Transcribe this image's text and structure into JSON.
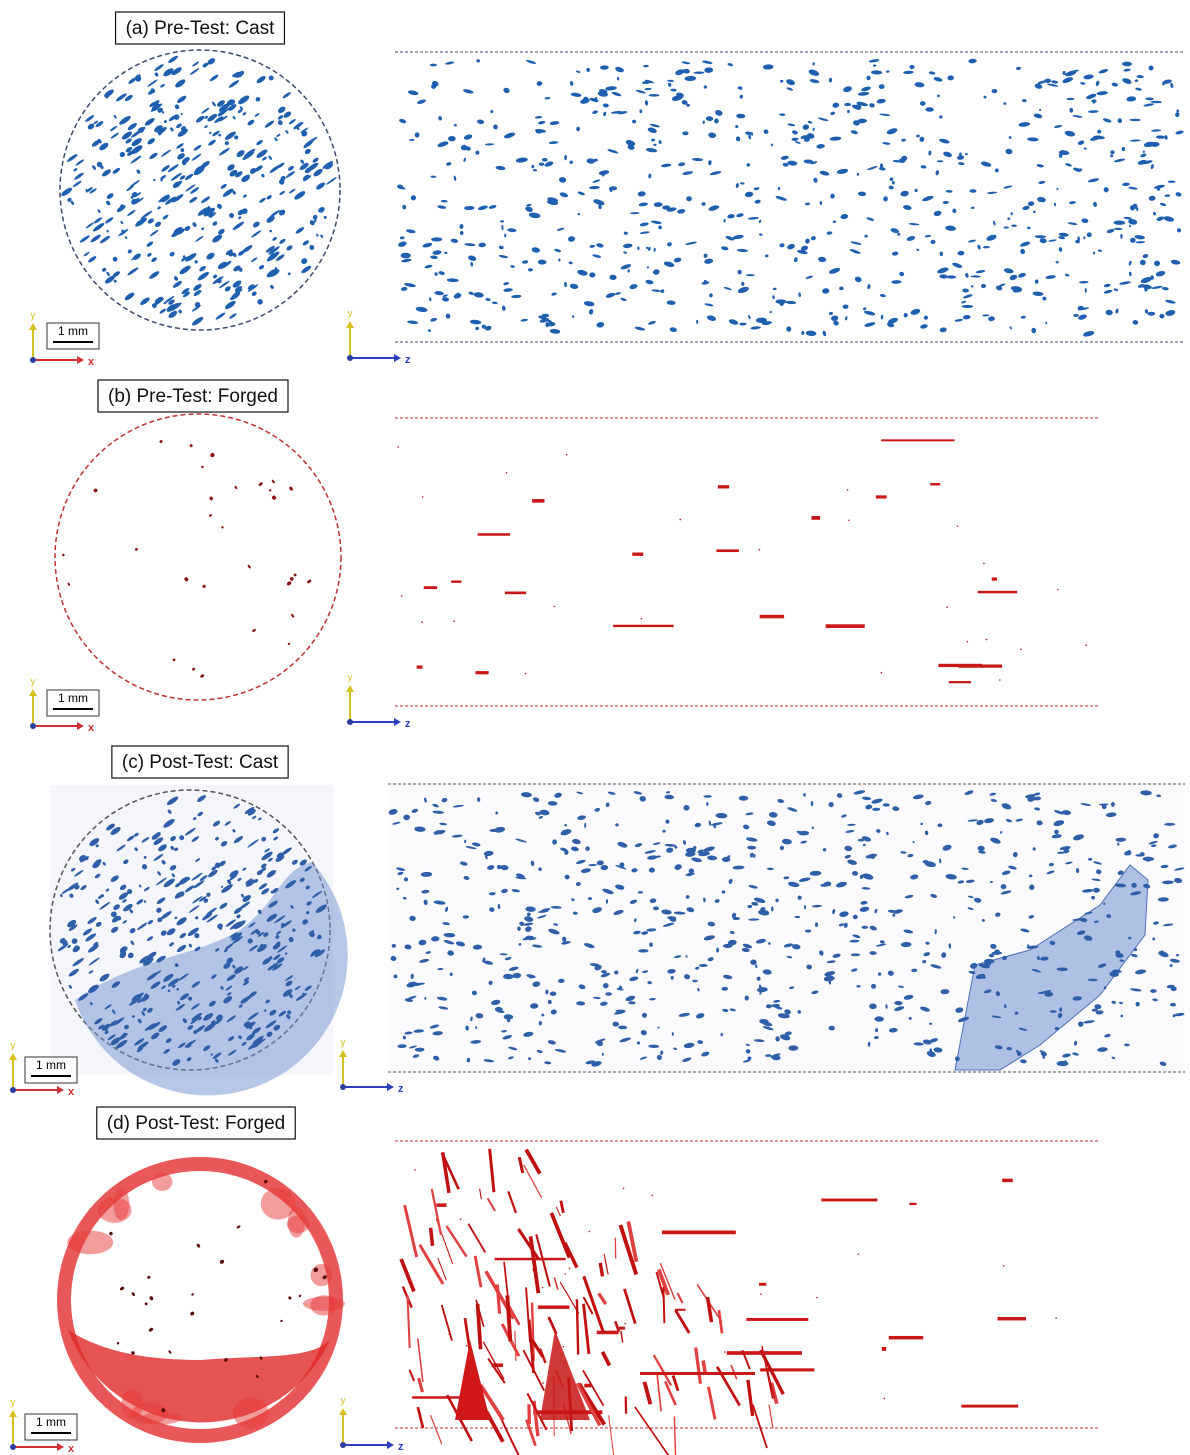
{
  "panels": [
    {
      "title": "(a) Pre-Test: Cast",
      "scale_bar": "1 mm",
      "cross_section_axes": [
        "y",
        "x"
      ],
      "side_axes": [
        "y",
        "z"
      ]
    },
    {
      "title": "(b) Pre-Test: Forged",
      "scale_bar": "1 mm",
      "cross_section_axes": [
        "y",
        "x"
      ],
      "side_axes": [
        "y",
        "z"
      ]
    },
    {
      "title": "(c) Post-Test: Cast",
      "scale_bar": "1 mm",
      "cross_section_axes": [
        "y",
        "x"
      ],
      "side_axes": [
        "y",
        "z"
      ]
    },
    {
      "title": "(d) Post-Test: Forged",
      "scale_bar": "1 mm",
      "cross_section_axes": [
        "y",
        "x"
      ],
      "side_axes": [
        "y",
        "z"
      ]
    }
  ]
}
